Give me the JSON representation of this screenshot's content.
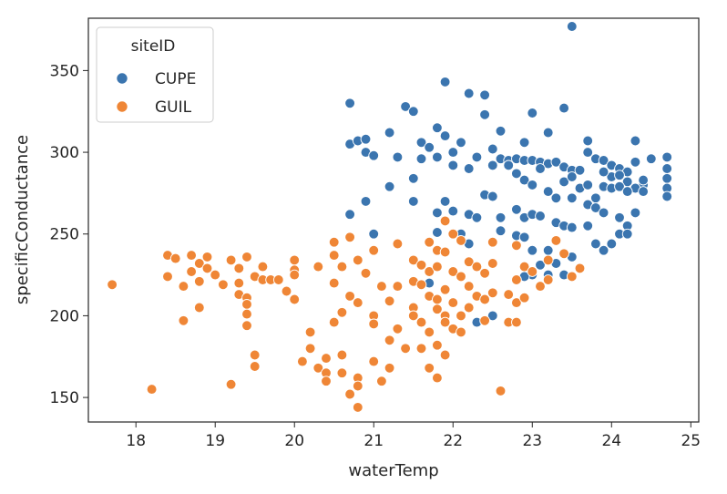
{
  "chart_data": {
    "type": "scatter",
    "title": "",
    "xlabel": "waterTemp",
    "ylabel": "specificConductance",
    "xlim": [
      17.4,
      25.1
    ],
    "ylim": [
      135,
      382
    ],
    "xticks": [
      18,
      19,
      20,
      21,
      22,
      23,
      24,
      25
    ],
    "yticks": [
      150,
      200,
      250,
      300,
      350
    ],
    "grid": false,
    "legend": {
      "title": "siteID",
      "placement": "top-left"
    },
    "series": [
      {
        "name": "CUPE",
        "color": "#3b75af",
        "points": [
          [
            23.5,
            377
          ],
          [
            21.9,
            343
          ],
          [
            22.2,
            336
          ],
          [
            22.4,
            335
          ],
          [
            20.7,
            330
          ],
          [
            21.4,
            328
          ],
          [
            21.5,
            325
          ],
          [
            23.4,
            327
          ],
          [
            23.0,
            324
          ],
          [
            21.8,
            315
          ],
          [
            22.4,
            323
          ],
          [
            22.6,
            313
          ],
          [
            23.2,
            312
          ],
          [
            21.2,
            312
          ],
          [
            21.9,
            310
          ],
          [
            21.6,
            306
          ],
          [
            22.1,
            306
          ],
          [
            22.5,
            302
          ],
          [
            22.9,
            306
          ],
          [
            23.7,
            307
          ],
          [
            24.3,
            307
          ],
          [
            20.7,
            305
          ],
          [
            20.8,
            307
          ],
          [
            20.9,
            308
          ],
          [
            20.9,
            300
          ],
          [
            21.0,
            298
          ],
          [
            21.3,
            297
          ],
          [
            21.6,
            296
          ],
          [
            21.8,
            297
          ],
          [
            21.7,
            303
          ],
          [
            22.0,
            300
          ],
          [
            22.3,
            297
          ],
          [
            22.6,
            296
          ],
          [
            22.7,
            295
          ],
          [
            22.8,
            296
          ],
          [
            22.9,
            295
          ],
          [
            23.0,
            295
          ],
          [
            23.1,
            294
          ],
          [
            23.2,
            293
          ],
          [
            23.3,
            294
          ],
          [
            23.4,
            291
          ],
          [
            23.5,
            289
          ],
          [
            23.6,
            289
          ],
          [
            23.7,
            300
          ],
          [
            23.8,
            296
          ],
          [
            23.9,
            295
          ],
          [
            24.0,
            292
          ],
          [
            24.1,
            290
          ],
          [
            24.2,
            288
          ],
          [
            24.3,
            294
          ],
          [
            24.4,
            280
          ],
          [
            24.5,
            296
          ],
          [
            24.7,
            297
          ],
          [
            24.7,
            290
          ],
          [
            24.7,
            284
          ],
          [
            24.7,
            278
          ],
          [
            24.7,
            273
          ],
          [
            21.2,
            279
          ],
          [
            21.5,
            284
          ],
          [
            21.5,
            270
          ],
          [
            22.0,
            292
          ],
          [
            22.2,
            290
          ],
          [
            22.5,
            292
          ],
          [
            22.7,
            292
          ],
          [
            22.8,
            287
          ],
          [
            22.9,
            283
          ],
          [
            23.0,
            280
          ],
          [
            23.1,
            290
          ],
          [
            23.2,
            276
          ],
          [
            23.3,
            272
          ],
          [
            23.4,
            282
          ],
          [
            23.5,
            285
          ],
          [
            23.5,
            272
          ],
          [
            23.6,
            278
          ],
          [
            23.7,
            280
          ],
          [
            23.8,
            272
          ],
          [
            23.9,
            279
          ],
          [
            24.0,
            285
          ],
          [
            24.1,
            286
          ],
          [
            24.2,
            282
          ],
          [
            24.3,
            278
          ],
          [
            24.4,
            283
          ],
          [
            24.4,
            276
          ],
          [
            23.7,
            300
          ],
          [
            23.9,
            288
          ],
          [
            24.0,
            278
          ],
          [
            24.1,
            279
          ],
          [
            24.2,
            276
          ],
          [
            22.4,
            274
          ],
          [
            22.5,
            273
          ],
          [
            21.9,
            270
          ],
          [
            22.0,
            264
          ],
          [
            21.8,
            263
          ],
          [
            22.2,
            262
          ],
          [
            22.3,
            260
          ],
          [
            22.6,
            260
          ],
          [
            22.8,
            265
          ],
          [
            22.9,
            260
          ],
          [
            23.0,
            262
          ],
          [
            23.1,
            261
          ],
          [
            23.3,
            257
          ],
          [
            23.4,
            255
          ],
          [
            23.5,
            254
          ],
          [
            23.7,
            255
          ],
          [
            23.7,
            268
          ],
          [
            23.8,
            266
          ],
          [
            23.9,
            263
          ],
          [
            24.1,
            260
          ],
          [
            24.2,
            255
          ],
          [
            24.3,
            263
          ],
          [
            24.1,
            250
          ],
          [
            20.9,
            270
          ],
          [
            21.0,
            250
          ],
          [
            20.7,
            262
          ],
          [
            21.8,
            251
          ],
          [
            22.1,
            250
          ],
          [
            22.2,
            244
          ],
          [
            22.6,
            252
          ],
          [
            22.8,
            249
          ],
          [
            22.9,
            248
          ],
          [
            23.0,
            240
          ],
          [
            23.2,
            240
          ],
          [
            23.1,
            231
          ],
          [
            23.0,
            225
          ],
          [
            22.9,
            224
          ],
          [
            23.2,
            225
          ],
          [
            23.5,
            236
          ],
          [
            23.8,
            244
          ],
          [
            23.9,
            240
          ],
          [
            24.0,
            244
          ],
          [
            24.2,
            250
          ],
          [
            22.5,
            200
          ],
          [
            22.3,
            196
          ],
          [
            21.7,
            220
          ],
          [
            23.3,
            232
          ],
          [
            23.4,
            225
          ]
        ]
      },
      {
        "name": "GUIL",
        "color": "#ef8636",
        "points": [
          [
            17.7,
            219
          ],
          [
            18.2,
            155
          ],
          [
            18.4,
            237
          ],
          [
            18.4,
            224
          ],
          [
            18.5,
            235
          ],
          [
            18.6,
            218
          ],
          [
            18.6,
            197
          ],
          [
            18.7,
            237
          ],
          [
            18.7,
            227
          ],
          [
            18.8,
            232
          ],
          [
            18.8,
            221
          ],
          [
            18.8,
            205
          ],
          [
            18.9,
            236
          ],
          [
            18.9,
            229
          ],
          [
            19.0,
            225
          ],
          [
            19.1,
            219
          ],
          [
            19.2,
            234
          ],
          [
            19.2,
            158
          ],
          [
            19.3,
            229
          ],
          [
            19.3,
            220
          ],
          [
            19.3,
            213
          ],
          [
            19.4,
            236
          ],
          [
            19.4,
            211
          ],
          [
            19.4,
            207
          ],
          [
            19.4,
            201
          ],
          [
            19.5,
            224
          ],
          [
            19.5,
            176
          ],
          [
            19.5,
            169
          ],
          [
            19.4,
            194
          ],
          [
            19.6,
            230
          ],
          [
            19.6,
            222
          ],
          [
            19.7,
            222
          ],
          [
            19.8,
            222
          ],
          [
            19.9,
            215
          ],
          [
            20.0,
            234
          ],
          [
            20.0,
            228
          ],
          [
            20.0,
            225
          ],
          [
            20.0,
            210
          ],
          [
            20.1,
            172
          ],
          [
            20.2,
            190
          ],
          [
            20.2,
            180
          ],
          [
            20.3,
            230
          ],
          [
            20.3,
            168
          ],
          [
            20.4,
            174
          ],
          [
            20.4,
            165
          ],
          [
            20.4,
            160
          ],
          [
            20.5,
            245
          ],
          [
            20.5,
            237
          ],
          [
            20.5,
            220
          ],
          [
            20.5,
            196
          ],
          [
            20.6,
            230
          ],
          [
            20.6,
            202
          ],
          [
            20.6,
            176
          ],
          [
            20.6,
            165
          ],
          [
            20.7,
            212
          ],
          [
            20.7,
            152
          ],
          [
            20.8,
            208
          ],
          [
            20.8,
            162
          ],
          [
            20.8,
            157
          ],
          [
            20.8,
            144
          ],
          [
            20.7,
            248
          ],
          [
            20.8,
            234
          ],
          [
            20.9,
            226
          ],
          [
            21.0,
            240
          ],
          [
            21.0,
            200
          ],
          [
            21.0,
            195
          ],
          [
            21.0,
            172
          ],
          [
            21.1,
            218
          ],
          [
            21.1,
            160
          ],
          [
            21.2,
            185
          ],
          [
            21.2,
            168
          ],
          [
            21.2,
            209
          ],
          [
            21.3,
            244
          ],
          [
            21.3,
            218
          ],
          [
            21.3,
            192
          ],
          [
            21.4,
            180
          ],
          [
            21.5,
            234
          ],
          [
            21.5,
            221
          ],
          [
            21.5,
            205
          ],
          [
            21.5,
            200
          ],
          [
            21.6,
            231
          ],
          [
            21.6,
            219
          ],
          [
            21.6,
            196
          ],
          [
            21.6,
            180
          ],
          [
            21.7,
            245
          ],
          [
            21.7,
            227
          ],
          [
            21.7,
            212
          ],
          [
            21.7,
            190
          ],
          [
            21.7,
            168
          ],
          [
            21.8,
            240
          ],
          [
            21.8,
            230
          ],
          [
            21.8,
            210
          ],
          [
            21.8,
            204
          ],
          [
            21.8,
            182
          ],
          [
            21.8,
            162
          ],
          [
            21.9,
            258
          ],
          [
            21.9,
            239
          ],
          [
            21.9,
            216
          ],
          [
            21.9,
            200
          ],
          [
            21.9,
            196
          ],
          [
            21.9,
            176
          ],
          [
            22.0,
            250
          ],
          [
            22.0,
            227
          ],
          [
            22.0,
            208
          ],
          [
            22.0,
            192
          ],
          [
            22.1,
            246
          ],
          [
            22.1,
            224
          ],
          [
            22.1,
            200
          ],
          [
            22.1,
            190
          ],
          [
            22.2,
            233
          ],
          [
            22.2,
            218
          ],
          [
            22.2,
            205
          ],
          [
            22.3,
            230
          ],
          [
            22.3,
            212
          ],
          [
            22.4,
            226
          ],
          [
            22.4,
            210
          ],
          [
            22.4,
            197
          ],
          [
            22.5,
            245
          ],
          [
            22.5,
            232
          ],
          [
            22.5,
            214
          ],
          [
            22.6,
            154
          ],
          [
            22.7,
            213
          ],
          [
            22.7,
            196
          ],
          [
            22.8,
            243
          ],
          [
            22.8,
            222
          ],
          [
            22.8,
            208
          ],
          [
            22.8,
            196
          ],
          [
            22.9,
            230
          ],
          [
            22.9,
            211
          ],
          [
            23.0,
            227
          ],
          [
            23.1,
            218
          ],
          [
            23.2,
            234
          ],
          [
            23.2,
            222
          ],
          [
            23.3,
            246
          ],
          [
            23.4,
            238
          ],
          [
            23.5,
            224
          ],
          [
            23.6,
            229
          ]
        ]
      }
    ]
  }
}
